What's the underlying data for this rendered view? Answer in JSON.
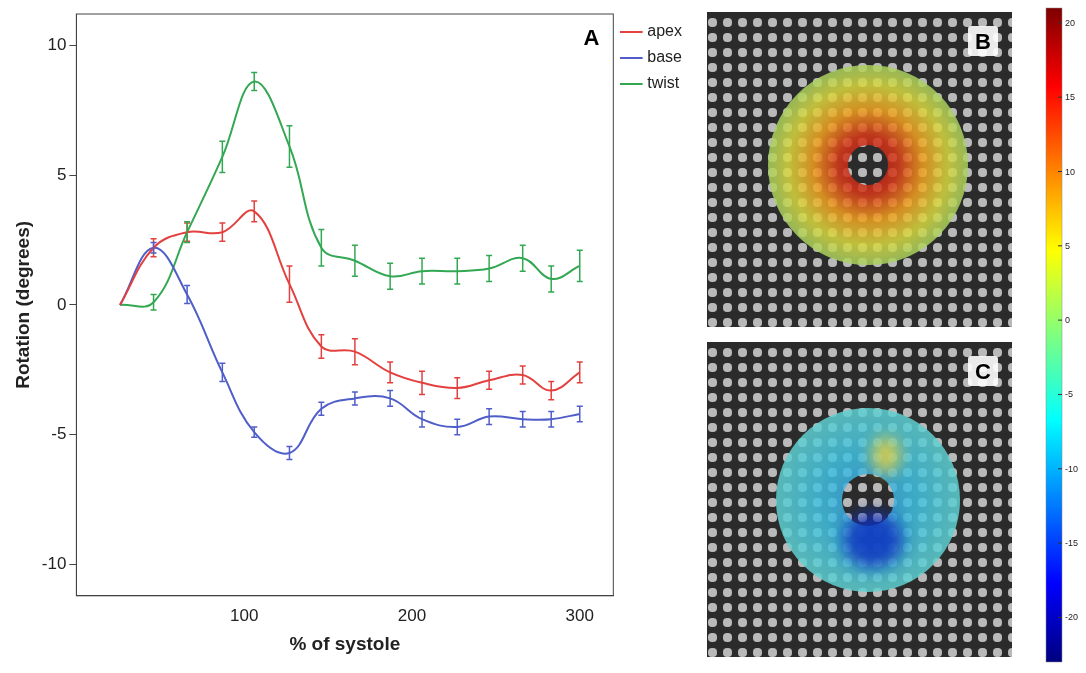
{
  "chart_data": {
    "type": "line",
    "label": "A",
    "x_label": "% of systole",
    "y_label": "Rotation (degrees)",
    "x": [
      26,
      46,
      66,
      87,
      106,
      127,
      146,
      166,
      187,
      206,
      227,
      246,
      266,
      283,
      300
    ],
    "series": [
      {
        "name": "apex",
        "color": "#e3413f",
        "values": [
          0,
          2.2,
          2.8,
          2.8,
          3.6,
          0.8,
          -1.6,
          -1.8,
          -2.6,
          -3.0,
          -3.2,
          -2.9,
          -2.7,
          -3.3,
          -2.6
        ],
        "errors": [
          null,
          0.35,
          0.35,
          0.35,
          0.4,
          0.7,
          0.45,
          0.5,
          0.4,
          0.45,
          0.4,
          0.35,
          0.35,
          0.35,
          0.4
        ]
      },
      {
        "name": "base",
        "color": "#4f5ec8",
        "values": [
          0,
          2.2,
          0.4,
          -2.6,
          -4.9,
          -5.7,
          -4.0,
          -3.6,
          -3.6,
          -4.4,
          -4.7,
          -4.3,
          -4.4,
          -4.4,
          -4.2
        ],
        "errors": [
          null,
          0.2,
          0.35,
          0.35,
          0.2,
          0.25,
          0.25,
          0.25,
          0.3,
          0.3,
          0.3,
          0.3,
          0.3,
          0.3,
          0.3
        ]
      },
      {
        "name": "twist",
        "color": "#33a852",
        "values": [
          0,
          0.1,
          2.8,
          5.7,
          8.6,
          6.1,
          2.2,
          1.7,
          1.1,
          1.3,
          1.3,
          1.4,
          1.8,
          1.0,
          1.5
        ],
        "errors": [
          null,
          0.3,
          0.4,
          0.6,
          0.35,
          0.8,
          0.7,
          0.6,
          0.5,
          0.5,
          0.5,
          0.5,
          0.5,
          0.5,
          0.6
        ]
      }
    ],
    "xlim": [
      0,
      320
    ],
    "xticks": [
      100,
      200,
      300
    ],
    "ylim": [
      -11.2,
      11.2
    ],
    "yticks": [
      -10,
      -5,
      0,
      5,
      10
    ],
    "grid": false,
    "legend": "right"
  },
  "images": [
    {
      "label": "B"
    },
    {
      "label": "C"
    }
  ],
  "colorbar": {
    "range": [
      -23,
      21
    ],
    "ticks": [
      20,
      15,
      10,
      5,
      0,
      -5,
      -10,
      -15,
      -20
    ]
  }
}
